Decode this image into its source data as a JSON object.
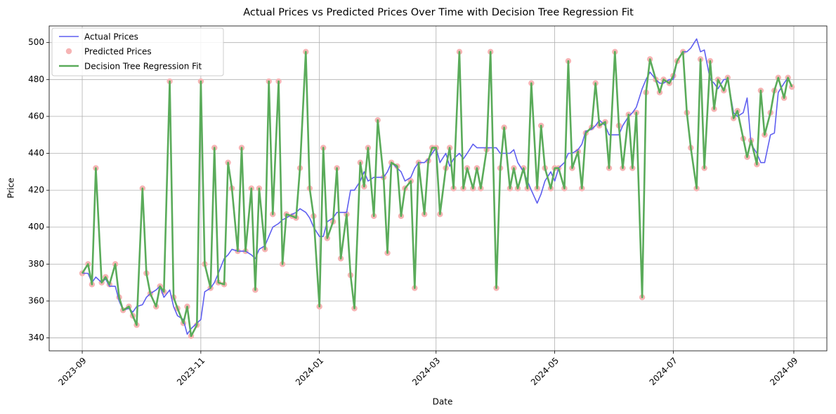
{
  "chart_data": {
    "type": "line",
    "title": "Actual Prices vs Predicted Prices Over Time with Decision Tree Regression Fit",
    "xlabel": "Date",
    "ylabel": "Price",
    "x": [
      19601,
      19604,
      19606,
      19608,
      19611,
      19613,
      19615,
      19618,
      19620,
      19622,
      19625,
      19627,
      19629,
      19632,
      19634,
      19636,
      19639,
      19641,
      19643,
      19646,
      19648,
      19650,
      19653,
      19655,
      19657,
      19660,
      19662,
      19664,
      19667,
      19669,
      19671,
      19674,
      19676,
      19678,
      19681,
      19683,
      19685,
      19688,
      19690,
      19692,
      19695,
      19697,
      19699,
      19702,
      19704,
      19706,
      19709,
      19711,
      19713,
      19716,
      19718,
      19720,
      19723,
      19725,
      19727,
      19730,
      19732,
      19734,
      19737,
      19739,
      19741,
      19744,
      19746,
      19748,
      19751,
      19753,
      19756,
      19758,
      19760,
      19763,
      19765,
      19767,
      19770,
      19772,
      19774,
      19777,
      19779,
      19781,
      19783,
      19785,
      19788,
      19790,
      19792,
      19795,
      19797,
      19799,
      19802,
      19804,
      19806,
      19809,
      19811,
      19814,
      19816,
      19818,
      19821,
      19823,
      19825,
      19828,
      19830,
      19832,
      19835,
      19837,
      19839,
      19842,
      19844,
      19846,
      19849,
      19851,
      19853,
      19856,
      19858,
      19860,
      19863,
      19865,
      19867,
      19870,
      19872,
      19875,
      19877,
      19879,
      19882,
      19884,
      19886,
      19889,
      19891,
      19893,
      19896,
      19898,
      19900,
      19903,
      19905,
      19907,
      19910,
      19912,
      19914,
      19917,
      19919,
      19921,
      19924,
      19926,
      19928,
      19931,
      19933,
      19936,
      19938,
      19941,
      19943,
      19945,
      19948,
      19950,
      19952,
      19955,
      19957,
      19959,
      19962,
      19964,
      19966
    ],
    "series": [
      {
        "name": "Actual Prices",
        "mark": "line",
        "color": "#5f5ff0",
        "width": 1.6,
        "values": [
          375,
          375,
          370,
          373,
          370,
          372,
          368,
          368,
          360,
          355,
          356,
          354,
          357,
          358,
          362,
          364,
          366,
          368,
          362,
          366,
          357,
          352,
          350,
          342,
          345,
          348,
          350,
          365,
          367,
          370,
          375,
          383,
          385,
          388,
          387,
          387,
          387,
          385,
          383,
          388,
          390,
          395,
          400,
          402,
          404,
          405,
          407,
          408,
          410,
          408,
          405,
          400,
          395,
          395,
          403,
          405,
          408,
          408,
          408,
          420,
          420,
          425,
          430,
          425,
          427,
          427,
          427,
          430,
          435,
          432,
          430,
          425,
          427,
          432,
          435,
          435,
          437,
          440,
          443,
          435,
          440,
          433,
          437,
          440,
          437,
          440,
          445,
          443,
          443,
          443,
          443,
          443,
          440,
          440,
          440,
          442,
          435,
          430,
          425,
          420,
          413,
          418,
          425,
          430,
          425,
          432,
          435,
          440,
          440,
          442,
          445,
          452,
          453,
          455,
          458,
          455,
          450,
          450,
          450,
          455,
          460,
          462,
          465,
          475,
          480,
          484,
          480,
          478,
          478,
          480,
          480,
          490,
          495,
          495,
          497,
          502,
          495,
          496,
          480,
          478,
          475,
          480,
          480,
          462,
          460,
          462,
          470,
          445,
          440,
          435,
          435,
          450,
          451,
          473,
          478,
          481,
          476
        ]
      },
      {
        "name": "Predicted Prices",
        "mark": "scatter",
        "color": "#f6b4b4",
        "values": [
          375,
          380,
          369,
          432,
          370,
          373,
          369,
          380,
          362,
          355,
          357,
          352,
          347,
          421,
          375,
          364,
          357,
          368,
          365,
          479,
          362,
          356,
          348,
          357,
          341,
          347,
          479,
          380,
          367,
          443,
          370,
          369,
          435,
          421,
          387,
          443,
          387,
          421,
          366,
          421,
          388,
          479,
          407,
          479,
          380,
          407,
          406,
          405,
          432,
          495,
          421,
          406,
          357,
          443,
          394,
          403,
          432,
          383,
          407,
          374,
          356,
          435,
          422,
          443,
          406,
          458,
          427,
          386,
          435,
          433,
          406,
          421,
          425,
          367,
          435,
          407,
          436,
          443,
          443,
          407,
          432,
          443,
          421,
          495,
          421,
          432,
          421,
          432,
          421,
          442,
          495,
          367,
          432,
          454,
          421,
          432,
          421,
          432,
          421,
          478,
          421,
          455,
          432,
          421,
          432,
          432,
          421,
          490,
          432,
          441,
          421,
          451,
          454,
          478,
          455,
          457,
          432,
          495,
          455,
          432,
          461,
          432,
          462,
          362,
          473,
          491,
          480,
          473,
          480,
          478,
          482,
          490,
          495,
          462,
          443,
          421,
          491,
          432,
          490,
          464,
          480,
          474,
          481,
          459,
          463,
          448,
          438,
          447,
          434,
          474,
          450,
          462,
          474,
          481,
          470,
          481,
          476
        ]
      },
      {
        "name": "Decision Tree Regression Fit",
        "mark": "line",
        "color": "#5aab5a",
        "width": 2.6,
        "values": [
          375,
          380,
          369,
          432,
          370,
          373,
          369,
          380,
          362,
          355,
          357,
          352,
          347,
          421,
          375,
          364,
          357,
          368,
          365,
          479,
          362,
          356,
          348,
          357,
          341,
          347,
          479,
          380,
          367,
          443,
          370,
          369,
          435,
          421,
          387,
          443,
          387,
          421,
          366,
          421,
          388,
          479,
          407,
          479,
          380,
          407,
          406,
          405,
          432,
          495,
          421,
          406,
          357,
          443,
          394,
          403,
          432,
          383,
          407,
          374,
          356,
          435,
          422,
          443,
          406,
          458,
          427,
          386,
          435,
          433,
          406,
          421,
          425,
          367,
          435,
          407,
          436,
          443,
          443,
          407,
          432,
          443,
          421,
          495,
          421,
          432,
          421,
          432,
          421,
          442,
          495,
          367,
          432,
          454,
          421,
          432,
          421,
          432,
          421,
          478,
          421,
          455,
          432,
          421,
          432,
          432,
          421,
          490,
          432,
          441,
          421,
          451,
          454,
          478,
          455,
          457,
          432,
          495,
          455,
          432,
          461,
          432,
          462,
          362,
          473,
          491,
          480,
          473,
          480,
          478,
          482,
          490,
          495,
          462,
          443,
          421,
          491,
          432,
          490,
          464,
          480,
          474,
          481,
          459,
          463,
          448,
          438,
          447,
          434,
          474,
          450,
          462,
          474,
          481,
          470,
          481,
          476
        ]
      }
    ],
    "xlim": [
      19584,
      19984
    ],
    "xticks": [
      {
        "value": 19601,
        "label": "2023-09"
      },
      {
        "value": 19662,
        "label": "2023-11"
      },
      {
        "value": 19723,
        "label": "2024-01"
      },
      {
        "value": 19783,
        "label": "2024-03"
      },
      {
        "value": 19844,
        "label": "2024-05"
      },
      {
        "value": 19905,
        "label": "2024-07"
      },
      {
        "value": 19967,
        "label": "2024-09"
      }
    ],
    "ylim": [
      333,
      509
    ],
    "yticks": [
      340,
      360,
      380,
      400,
      420,
      440,
      460,
      480,
      500
    ],
    "grid": true,
    "legend": "upper left"
  }
}
